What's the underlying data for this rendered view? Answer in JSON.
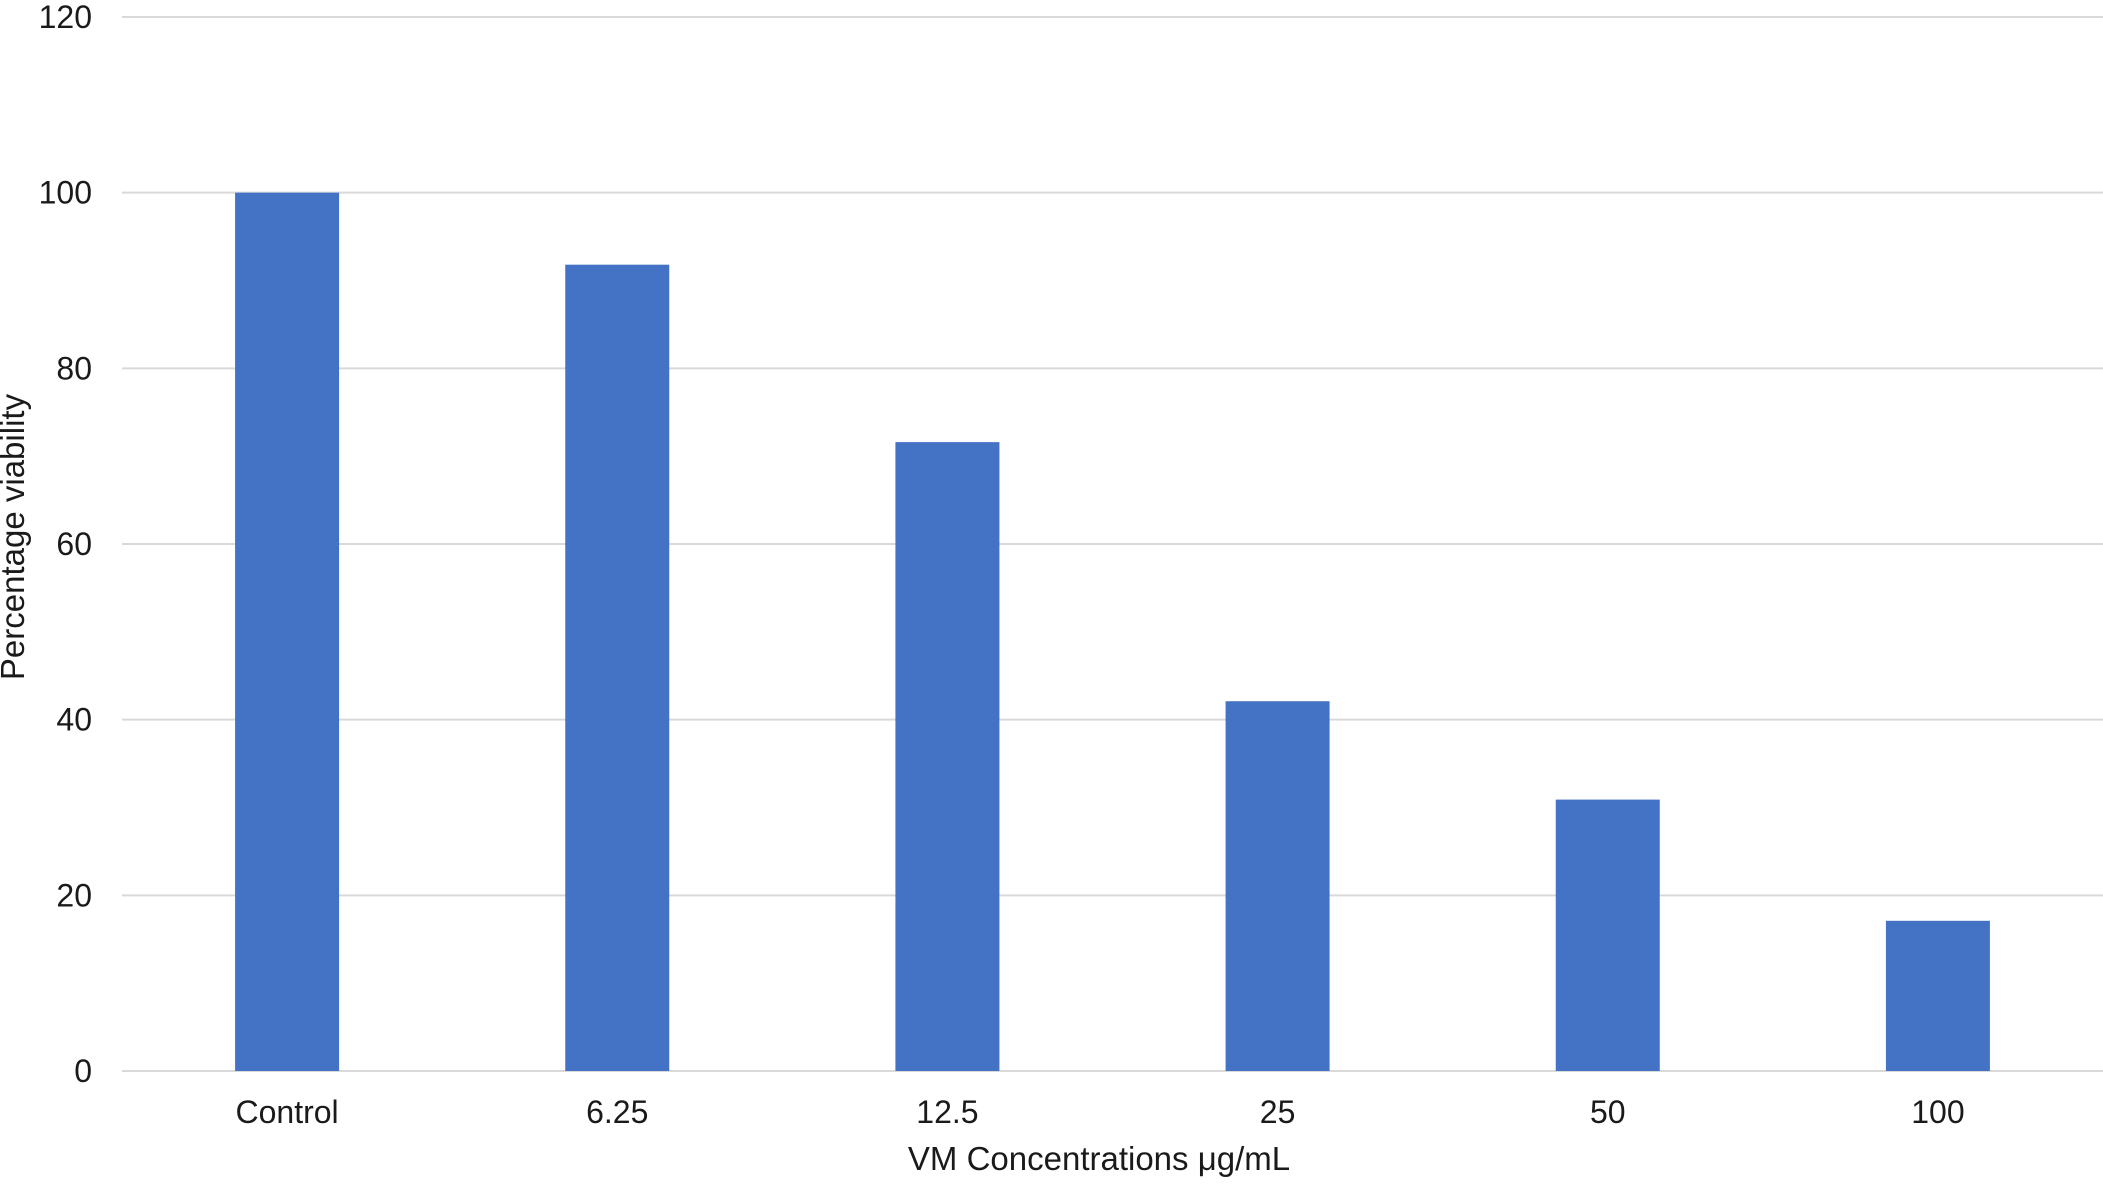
{
  "chart_data": {
    "type": "bar",
    "title": "",
    "xlabel": "VM Concentrations μg/mL",
    "ylabel": "Percentage viability",
    "categories": [
      "Control",
      "6.25",
      "12.5",
      "25",
      "50",
      "100"
    ],
    "series": [
      {
        "values": [
          100,
          91.8,
          71.6,
          42.1,
          30.9,
          17.1
        ]
      }
    ],
    "ylim": [
      0,
      120
    ],
    "yticks": [
      0,
      20,
      40,
      60,
      80,
      100,
      120
    ],
    "grid": true,
    "legend": "none",
    "bar_color": "#4472c4",
    "grid_color": "#d9d9d9"
  }
}
